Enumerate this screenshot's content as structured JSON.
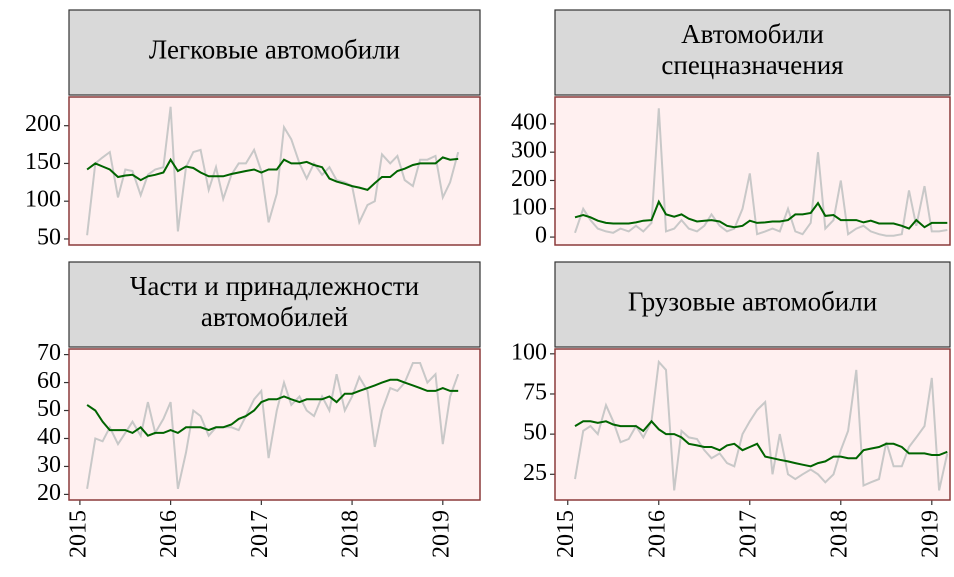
{
  "chart_data": [
    {
      "type": "line",
      "title": [
        "Легковые автомобили"
      ],
      "x": [
        2015.08,
        2015.17,
        2015.25,
        2015.33,
        2015.42,
        2015.5,
        2015.58,
        2015.67,
        2015.75,
        2015.83,
        2015.92,
        2016,
        2016.08,
        2016.17,
        2016.25,
        2016.33,
        2016.42,
        2016.5,
        2016.58,
        2016.67,
        2016.75,
        2016.83,
        2016.92,
        2017,
        2017.08,
        2017.17,
        2017.25,
        2017.33,
        2017.42,
        2017.5,
        2017.58,
        2017.67,
        2017.75,
        2017.83,
        2017.92,
        2018,
        2018.08,
        2018.17,
        2018.25,
        2018.33,
        2018.42,
        2018.5,
        2018.58,
        2018.67,
        2018.75,
        2018.83,
        2018.92,
        2019,
        2019.08,
        2019.17
      ],
      "series": [
        {
          "color": "#c8c8c8",
          "values": [
            55,
            150,
            158,
            165,
            105,
            142,
            140,
            108,
            135,
            142,
            145,
            225,
            60,
            145,
            165,
            168,
            115,
            145,
            103,
            135,
            150,
            150,
            168,
            140,
            72,
            110,
            198,
            182,
            150,
            130,
            150,
            135,
            145,
            128,
            125,
            120,
            72,
            95,
            100,
            162,
            150,
            160,
            128,
            120,
            155,
            155,
            160,
            105,
            125,
            165
          ]
        },
        {
          "color": "#006400",
          "values": [
            142,
            150,
            146,
            142,
            132,
            134,
            135,
            128,
            133,
            135,
            138,
            155,
            140,
            146,
            144,
            138,
            133,
            133,
            133,
            136,
            138,
            140,
            142,
            138,
            142,
            142,
            155,
            150,
            150,
            152,
            148,
            145,
            130,
            126,
            123,
            120,
            118,
            115,
            124,
            132,
            132,
            140,
            143,
            148,
            150,
            150,
            150,
            158,
            155,
            156
          ]
        }
      ],
      "xlim": [
        2014.88,
        2019.41
      ],
      "ylim": [
        42,
        238
      ],
      "yticks": [
        50,
        100,
        150,
        200
      ]
    },
    {
      "type": "line",
      "title": [
        "Автомобили",
        "спецназначения"
      ],
      "x": [
        2015.08,
        2015.17,
        2015.25,
        2015.33,
        2015.42,
        2015.5,
        2015.58,
        2015.67,
        2015.75,
        2015.83,
        2015.92,
        2016,
        2016.08,
        2016.17,
        2016.25,
        2016.33,
        2016.42,
        2016.5,
        2016.58,
        2016.67,
        2016.75,
        2016.83,
        2016.92,
        2017,
        2017.08,
        2017.17,
        2017.25,
        2017.33,
        2017.42,
        2017.5,
        2017.58,
        2017.67,
        2017.75,
        2017.83,
        2017.92,
        2018,
        2018.08,
        2018.17,
        2018.25,
        2018.33,
        2018.42,
        2018.5,
        2018.58,
        2018.67,
        2018.75,
        2018.83,
        2018.92,
        2019,
        2019.08,
        2019.17
      ],
      "series": [
        {
          "color": "#c8c8c8",
          "values": [
            15,
            100,
            60,
            30,
            20,
            15,
            30,
            20,
            40,
            20,
            50,
            455,
            20,
            30,
            60,
            30,
            20,
            40,
            80,
            40,
            20,
            30,
            100,
            225,
            10,
            20,
            30,
            20,
            100,
            20,
            10,
            50,
            300,
            30,
            60,
            200,
            10,
            30,
            40,
            20,
            10,
            5,
            5,
            10,
            165,
            40,
            180,
            20,
            20,
            25
          ]
        },
        {
          "color": "#006400",
          "values": [
            70,
            78,
            70,
            58,
            50,
            48,
            48,
            48,
            52,
            58,
            60,
            125,
            80,
            72,
            80,
            65,
            55,
            58,
            60,
            55,
            40,
            35,
            40,
            58,
            50,
            52,
            55,
            55,
            60,
            80,
            80,
            85,
            120,
            75,
            78,
            60,
            60,
            60,
            52,
            58,
            48,
            48,
            48,
            40,
            30,
            60,
            35,
            50,
            50,
            50
          ]
        }
      ],
      "xlim": [
        2014.86,
        2019.2
      ],
      "ylim": [
        -28,
        495
      ],
      "yticks": [
        0,
        100,
        200,
        300,
        400
      ]
    },
    {
      "type": "line",
      "title": [
        "Части и принадлежности",
        "автомобилей"
      ],
      "x": [
        2015.08,
        2015.17,
        2015.25,
        2015.33,
        2015.42,
        2015.5,
        2015.58,
        2015.67,
        2015.75,
        2015.83,
        2015.92,
        2016,
        2016.08,
        2016.17,
        2016.25,
        2016.33,
        2016.42,
        2016.5,
        2016.58,
        2016.67,
        2016.75,
        2016.83,
        2016.92,
        2017,
        2017.08,
        2017.17,
        2017.25,
        2017.33,
        2017.42,
        2017.5,
        2017.58,
        2017.67,
        2017.75,
        2017.83,
        2017.92,
        2018,
        2018.08,
        2018.17,
        2018.25,
        2018.33,
        2018.42,
        2018.5,
        2018.58,
        2018.67,
        2018.75,
        2018.83,
        2018.92,
        2019,
        2019.08,
        2019.17
      ],
      "series": [
        {
          "color": "#c8c8c8",
          "values": [
            22,
            40,
            39,
            44,
            38,
            42,
            46,
            41,
            53,
            42,
            47,
            53,
            22,
            35,
            50,
            48,
            41,
            44,
            44,
            44,
            43,
            48,
            54,
            57,
            33,
            50,
            60,
            52,
            55,
            50,
            48,
            55,
            50,
            63,
            50,
            55,
            62,
            57,
            37,
            50,
            58,
            57,
            60,
            67,
            67,
            60,
            63,
            38,
            55,
            63
          ]
        },
        {
          "color": "#006400",
          "values": [
            52,
            50,
            46,
            43,
            43,
            43,
            42,
            44,
            41,
            42,
            42,
            43,
            42,
            44,
            44,
            44,
            43,
            44,
            44,
            45,
            47,
            48,
            50,
            53,
            54,
            54,
            55,
            54,
            53,
            54,
            54,
            54,
            55,
            53,
            56,
            56,
            57,
            58,
            59,
            60,
            61,
            61,
            60,
            59,
            58,
            57,
            57,
            58,
            57,
            57
          ]
        }
      ],
      "xlim": [
        2014.88,
        2019.41
      ],
      "xticks": [
        2015,
        2016,
        2017,
        2018,
        2019
      ],
      "ylim": [
        18,
        72
      ],
      "yticks": [
        20,
        30,
        40,
        50,
        60,
        70
      ]
    },
    {
      "type": "line",
      "title": [
        "Грузовые автомобили"
      ],
      "x": [
        2015.08,
        2015.17,
        2015.25,
        2015.33,
        2015.42,
        2015.5,
        2015.58,
        2015.67,
        2015.75,
        2015.83,
        2015.92,
        2016,
        2016.08,
        2016.17,
        2016.25,
        2016.33,
        2016.42,
        2016.5,
        2016.58,
        2016.67,
        2016.75,
        2016.83,
        2016.92,
        2017,
        2017.08,
        2017.17,
        2017.25,
        2017.33,
        2017.42,
        2017.5,
        2017.58,
        2017.67,
        2017.75,
        2017.83,
        2017.92,
        2018,
        2018.08,
        2018.17,
        2018.25,
        2018.33,
        2018.42,
        2018.5,
        2018.58,
        2018.67,
        2018.75,
        2018.83,
        2018.92,
        2019,
        2019.08,
        2019.17
      ],
      "series": [
        {
          "color": "#c8c8c8",
          "values": [
            22,
            52,
            55,
            50,
            68,
            58,
            45,
            47,
            55,
            48,
            58,
            95,
            90,
            15,
            52,
            48,
            47,
            40,
            35,
            38,
            32,
            30,
            50,
            58,
            65,
            70,
            25,
            50,
            25,
            22,
            25,
            28,
            25,
            20,
            25,
            40,
            52,
            90,
            18,
            20,
            22,
            45,
            30,
            30,
            42,
            48,
            55,
            85,
            15,
            38
          ]
        },
        {
          "color": "#006400",
          "values": [
            55,
            58,
            58,
            57,
            58,
            56,
            55,
            55,
            55,
            52,
            58,
            53,
            50,
            50,
            48,
            44,
            43,
            42,
            42,
            40,
            43,
            44,
            40,
            42,
            44,
            36,
            35,
            34,
            33,
            32,
            31,
            30,
            32,
            33,
            36,
            36,
            35,
            35,
            40,
            41,
            42,
            44,
            44,
            42,
            38,
            38,
            38,
            37,
            37,
            39
          ]
        }
      ],
      "xlim": [
        2014.86,
        2019.2
      ],
      "xticks": [
        2015,
        2016,
        2017,
        2018,
        2019
      ],
      "ylim": [
        9,
        103
      ],
      "yticks": [
        25,
        50,
        75,
        100
      ]
    }
  ]
}
